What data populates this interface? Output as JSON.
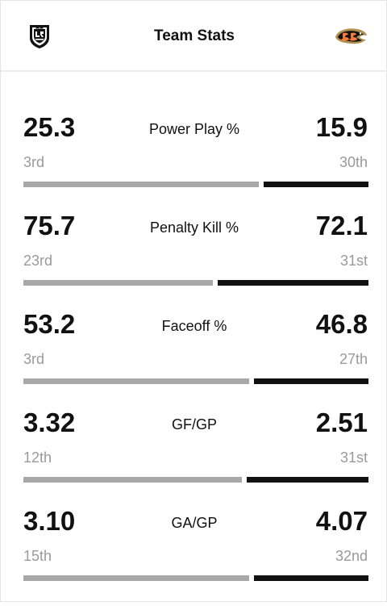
{
  "header": {
    "title": "Team Stats",
    "home_team_logo": "la-kings-shield-icon",
    "away_team_logo": "ducks-logo-icon"
  },
  "colors": {
    "home_bar": "#a8a8a8",
    "away_bar": "#111111",
    "rank_text": "#9a9a9a"
  },
  "stats": [
    {
      "label": "Power Play %",
      "home_value": "25.3",
      "home_rank": "3rd",
      "away_value": "15.9",
      "away_rank": "30th",
      "home_share": 0.691
    },
    {
      "label": "Penalty Kill %",
      "home_value": "75.7",
      "home_rank": "23rd",
      "away_value": "72.1",
      "away_rank": "31st",
      "home_share": 0.558
    },
    {
      "label": "Faceoff %",
      "home_value": "53.2",
      "home_rank": "3rd",
      "away_value": "46.8",
      "away_rank": "27th",
      "home_share": 0.663
    },
    {
      "label": "GF/GP",
      "home_value": "3.32",
      "home_rank": "12th",
      "away_value": "2.51",
      "away_rank": "31st",
      "home_share": 0.643
    },
    {
      "label": "GA/GP",
      "home_value": "3.10",
      "home_rank": "15th",
      "away_value": "4.07",
      "away_rank": "32nd",
      "home_share": 0.663
    }
  ]
}
